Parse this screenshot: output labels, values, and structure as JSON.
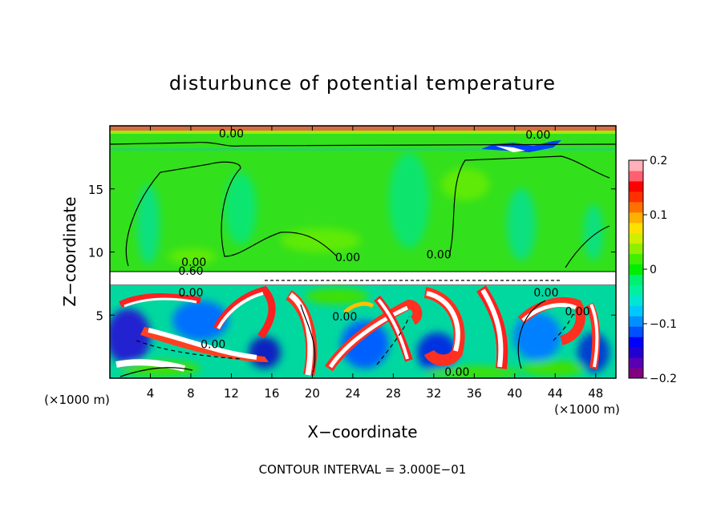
{
  "chart_data": {
    "type": "heatmap",
    "title": "disturbunce of potential temperature",
    "xlabel": "X−coordinate",
    "ylabel": "Z−coordinate",
    "x_unit_left": "(×1000 m)",
    "x_unit_right": "(×1000 m)",
    "xlim": [
      0,
      50
    ],
    "ylim": [
      0,
      20
    ],
    "x_ticks": [
      4,
      8,
      12,
      16,
      20,
      24,
      28,
      32,
      36,
      40,
      44,
      48
    ],
    "x_tick_labels": [
      "4",
      "8",
      "12",
      "16",
      "20",
      "24",
      "28",
      "32",
      "36",
      "40",
      "44",
      "48"
    ],
    "y_ticks": [
      5,
      10,
      15
    ],
    "y_tick_labels": [
      "5",
      "10",
      "15"
    ],
    "footer": "CONTOUR INTERVAL = 3.000E−01",
    "colorbar": {
      "range": [
        -0.2,
        0.2
      ],
      "ticks": [
        0.2,
        0.1,
        0,
        -0.1,
        -0.2
      ],
      "tick_labels": [
        "0.2",
        "0.1",
        "0",
        "−0.1",
        "−0.2"
      ],
      "colors": [
        "#800080",
        "#5a00b4",
        "#2200d0",
        "#0000ff",
        "#0050ff",
        "#0090ff",
        "#00c8ff",
        "#00e6d2",
        "#00f0a0",
        "#00f070",
        "#00ee00",
        "#40ee00",
        "#90ee00",
        "#d0ee00",
        "#ffe000",
        "#ffb000",
        "#ff7000",
        "#ff3000",
        "#ff0000",
        "#ff6070",
        "#ffb0b8"
      ]
    },
    "contour_labels": [
      {
        "text": "0.00",
        "x": 12,
        "z": 19.4
      },
      {
        "text": "0.00",
        "x": 42.3,
        "z": 19.3
      },
      {
        "text": "0.00",
        "x": 8.3,
        "z": 9.2
      },
      {
        "text": "0.60",
        "x": 8,
        "z": 8.5
      },
      {
        "text": "0.00",
        "x": 23.5,
        "z": 9.6
      },
      {
        "text": "0.00",
        "x": 32.5,
        "z": 9.8
      },
      {
        "text": "0.00",
        "x": 8,
        "z": 6.8
      },
      {
        "text": "0.00",
        "x": 23.2,
        "z": 4.9
      },
      {
        "text": "0.00",
        "x": 10.2,
        "z": 2.7
      },
      {
        "text": "0.00",
        "x": 34.3,
        "z": 0.5
      },
      {
        "text": "0.00",
        "x": 43.1,
        "z": 6.8
      },
      {
        "text": "0.00",
        "x": 46.2,
        "z": 5.3
      }
    ],
    "grid": false,
    "legend": "colorbar-right"
  }
}
